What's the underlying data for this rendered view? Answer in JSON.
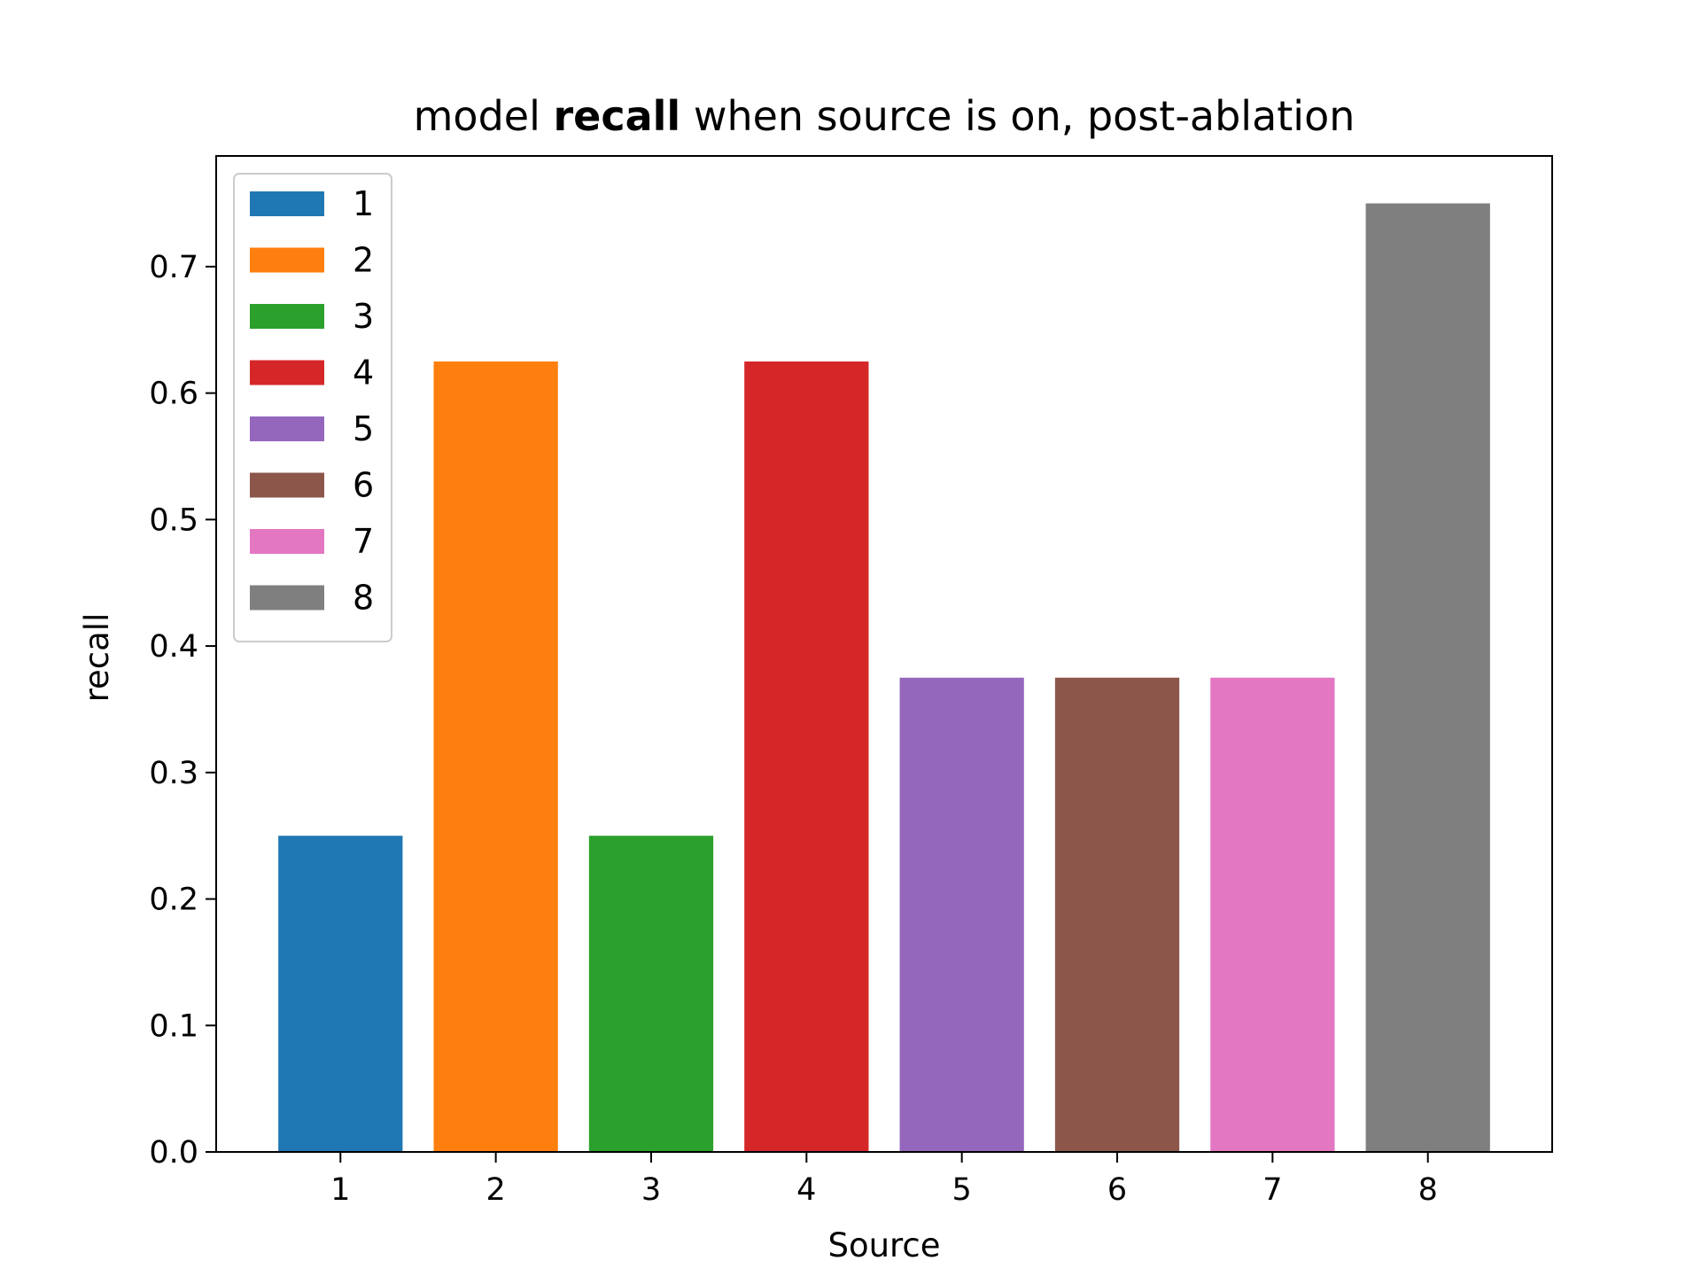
{
  "chart_data": {
    "type": "bar",
    "title_parts": [
      {
        "text": "model ",
        "bold": false
      },
      {
        "text": "recall",
        "bold": true
      },
      {
        "text": " when source is on, post-ablation",
        "bold": false
      }
    ],
    "xlabel": "Source",
    "ylabel": "recall",
    "categories": [
      "1",
      "2",
      "3",
      "4",
      "5",
      "6",
      "7",
      "8"
    ],
    "values": [
      0.25,
      0.625,
      0.25,
      0.625,
      0.375,
      0.375,
      0.375,
      0.75
    ],
    "colors": [
      "#1f77b4",
      "#ff7f0e",
      "#2ca02c",
      "#d62728",
      "#9467bd",
      "#8c564b",
      "#e377c2",
      "#7f7f7f"
    ],
    "ylim": [
      0,
      0.7875
    ],
    "yticks": [
      "0.0",
      "0.1",
      "0.2",
      "0.3",
      "0.4",
      "0.5",
      "0.6",
      "0.7"
    ],
    "legend": {
      "placement": "top-left",
      "entries": [
        "1",
        "2",
        "3",
        "4",
        "5",
        "6",
        "7",
        "8"
      ]
    },
    "grid": false
  }
}
